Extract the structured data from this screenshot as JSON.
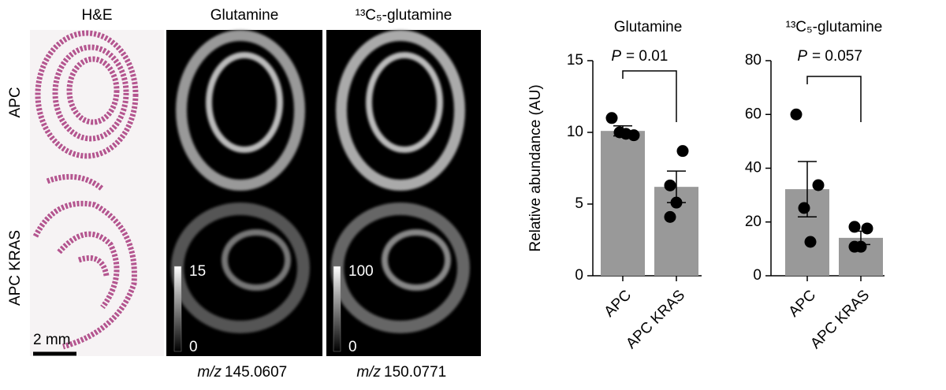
{
  "images": {
    "row_labels": [
      "APC",
      "APC KRAS"
    ],
    "scale_bar": "2 mm",
    "panels": [
      {
        "title": "H&E"
      },
      {
        "title": "Glutamine",
        "mz_unit": "m/z",
        "mz": "145.0607",
        "scale_max": 15,
        "scale_min": 0
      },
      {
        "title": "¹³C₅-glutamine",
        "mz_unit": "m/z",
        "mz": "150.0771",
        "scale_max": 100,
        "scale_min": 0
      }
    ]
  },
  "chart_data": [
    {
      "type": "bar",
      "title": "Glutamine",
      "ylabel": "Relative abundance (AU)",
      "categories": [
        "APC",
        "APC KRAS"
      ],
      "values": [
        10.1,
        6.2
      ],
      "errors": [
        0.35,
        1.1
      ],
      "points": [
        [
          11.0,
          9.8,
          10.0,
          9.9
        ],
        [
          8.7,
          6.3,
          5.1,
          4.1
        ]
      ],
      "color": "#999999",
      "annotation": {
        "italic": "P",
        "text": "= 0.01"
      },
      "ylim": [
        0,
        15
      ],
      "yticks": [
        0,
        5,
        10,
        15
      ]
    },
    {
      "type": "bar",
      "title": "¹³C₅-glutamine",
      "categories": [
        "APC",
        "APC KRAS"
      ],
      "values": [
        32.2,
        14.1
      ],
      "errors": [
        10.3,
        2.5
      ],
      "points": [
        [
          60,
          33.7,
          25.2,
          12.6
        ],
        [
          17.6,
          18.2,
          10.8,
          10.8
        ]
      ],
      "color": "#999999",
      "annotation": {
        "italic": "P",
        "text": "= 0.057"
      },
      "ylim": [
        0,
        80
      ],
      "yticks": [
        0,
        20,
        40,
        60,
        80
      ]
    }
  ]
}
